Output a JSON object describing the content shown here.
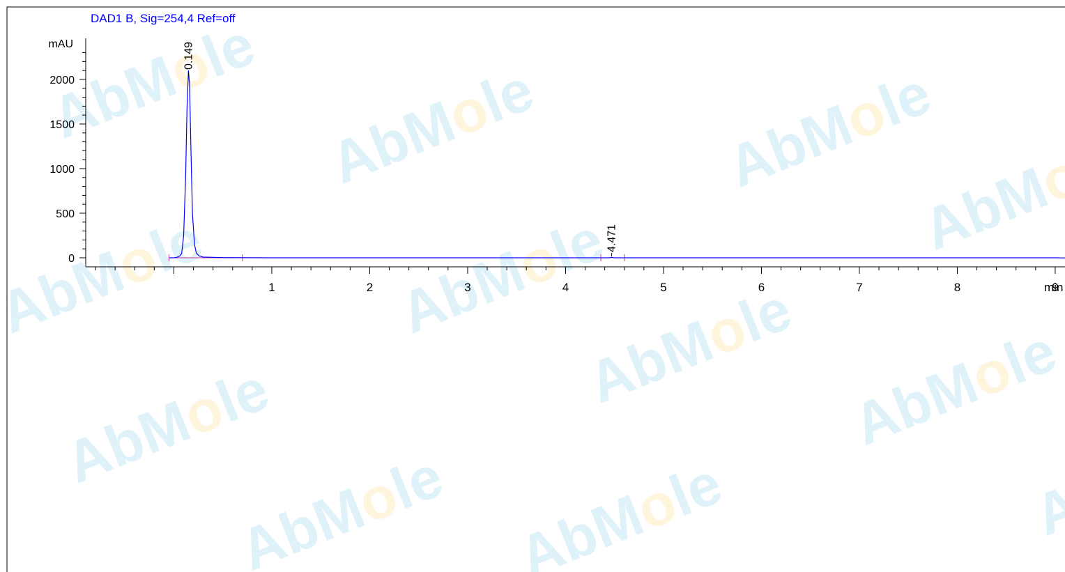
{
  "chart_data": {
    "type": "line",
    "title": "DAD1 B, Sig=254,4 Ref=off",
    "ylabel": "mAU",
    "xlabel": "min",
    "xlim": [
      -0.9,
      10
    ],
    "ylim": [
      -100,
      2500
    ],
    "x_ticks": [
      1,
      2,
      3,
      4,
      5,
      6,
      7,
      8,
      9
    ],
    "y_ticks": [
      0,
      500,
      1000,
      1500,
      2000
    ],
    "series": [
      {
        "color": "#0000ff",
        "x": [
          -0.05,
          0.0,
          0.03,
          0.06,
          0.08,
          0.1,
          0.12,
          0.135,
          0.149,
          0.16,
          0.175,
          0.19,
          0.21,
          0.23,
          0.26,
          0.3,
          0.5,
          1.0,
          2.0,
          3.0,
          4.0,
          4.45,
          4.471,
          4.5,
          5.0,
          6.0,
          7.0,
          8.0,
          9.0,
          9.6,
          9.8,
          10.0
        ],
        "y": [
          0,
          0,
          5,
          20,
          50,
          250,
          900,
          1700,
          2100,
          1950,
          1200,
          500,
          150,
          50,
          20,
          8,
          2,
          0,
          0,
          0,
          0,
          0,
          5,
          0,
          0,
          0,
          0,
          0,
          0,
          -10,
          -12,
          -5
        ]
      }
    ],
    "peaks": [
      {
        "time": 0.149,
        "label": "0.149"
      },
      {
        "time": 4.471,
        "label": "4.471"
      }
    ],
    "baseline_marks": [
      -0.05,
      0.7,
      4.36,
      4.6
    ],
    "grid": false
  },
  "watermark": {
    "text_left": "AbM",
    "text_o": "o",
    "text_right": "le",
    "color_main": "#1aa0dc",
    "color_accent": "#f4b400"
  }
}
